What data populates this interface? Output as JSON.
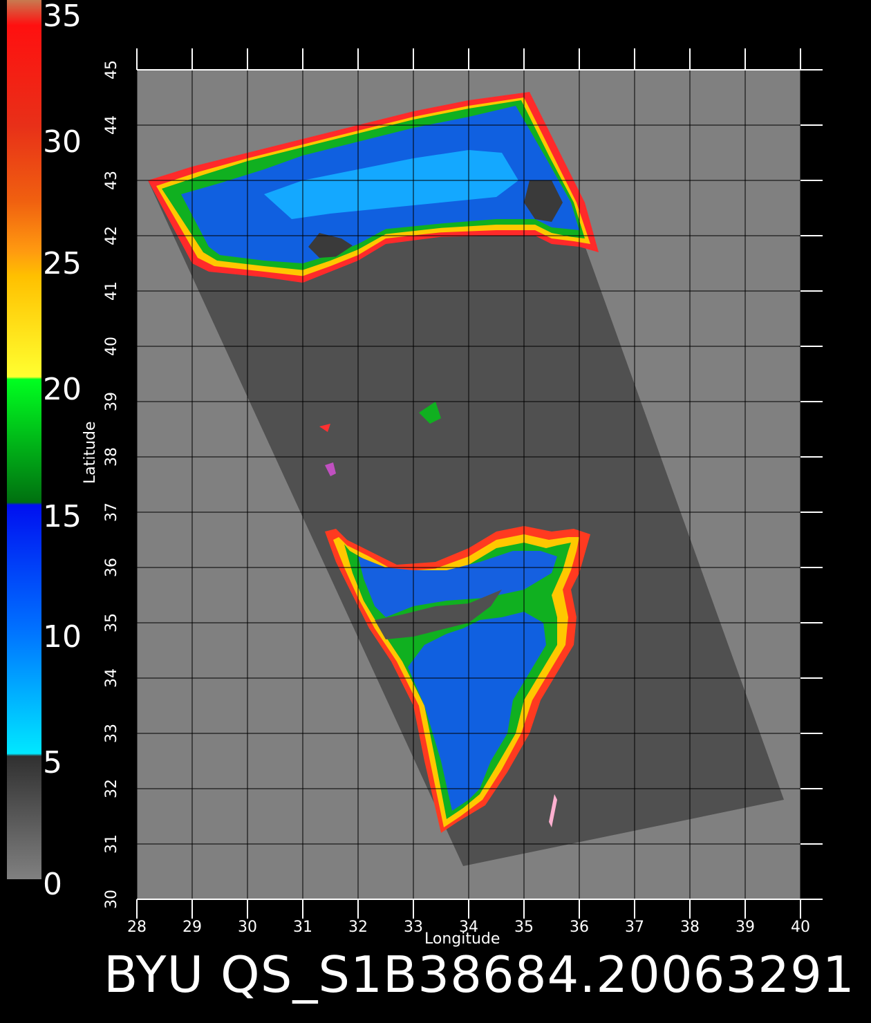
{
  "colorbar": {
    "labels": [
      "35",
      "30",
      "25",
      "20",
      "15",
      "10",
      "5",
      "0"
    ],
    "stops": [
      {
        "v": 35,
        "color": "#c87a50"
      },
      {
        "v": 34,
        "color": "#ff1010"
      },
      {
        "v": 30,
        "color": "#e83018"
      },
      {
        "v": 27,
        "color": "#f06010"
      },
      {
        "v": 25,
        "color": "#ff9a10"
      },
      {
        "v": 24,
        "color": "#ffc000"
      },
      {
        "v": 20,
        "color": "#ffff30"
      },
      {
        "v": 19.9,
        "color": "#00ff20"
      },
      {
        "v": 15,
        "color": "#007010"
      },
      {
        "v": 14.9,
        "color": "#0010f0"
      },
      {
        "v": 10,
        "color": "#0070ff"
      },
      {
        "v": 5,
        "color": "#00e8ff"
      },
      {
        "v": 4.9,
        "color": "#303030"
      },
      {
        "v": 0,
        "color": "#808080"
      }
    ]
  },
  "map": {
    "lon_range": [
      28,
      40
    ],
    "lat_range": [
      30,
      45
    ],
    "lon_ticks": [
      "28",
      "29",
      "30",
      "31",
      "32",
      "33",
      "34",
      "35",
      "36",
      "37",
      "38",
      "39",
      "40"
    ],
    "lat_ticks": [
      "30",
      "31",
      "32",
      "33",
      "34",
      "35",
      "36",
      "37",
      "38",
      "39",
      "40",
      "41",
      "42",
      "43",
      "44",
      "45"
    ],
    "xlabel": "Longitude",
    "ylabel": "Latitude",
    "background_color": "#808080",
    "land_color": "#505050",
    "swath_corners_lonlat": [
      [
        28.2,
        43.0
      ],
      [
        35.1,
        44.6
      ],
      [
        39.7,
        31.8
      ],
      [
        33.9,
        30.6
      ]
    ],
    "black_sea_color": "#1060e0",
    "mediterranean_color": "#1060e0"
  },
  "footer": {
    "text": "BYU  QS_S1B38684.20063291"
  }
}
